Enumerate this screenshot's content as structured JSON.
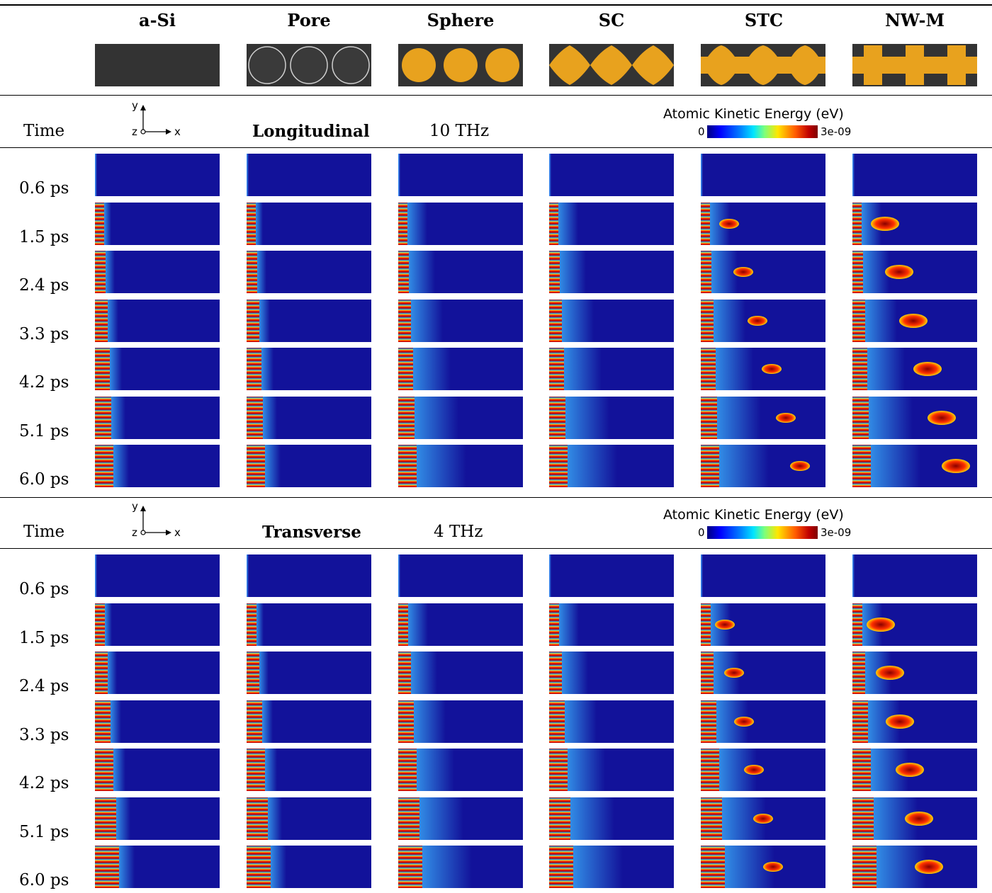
{
  "columns": [
    "a-Si",
    "Pore",
    "Sphere",
    "SC",
    "STC",
    "NW-M"
  ],
  "sections": [
    {
      "time_label": "Time",
      "axis": {
        "y": "y",
        "z": "z",
        "x": "x"
      },
      "mode": "Longitudinal",
      "frequency": "10 THz",
      "colorbar": {
        "title": "Atomic Kinetic Energy (eV)",
        "min": "0",
        "max": "3e-09"
      },
      "times": [
        "0.6 ps",
        "1.5 ps",
        "2.4 ps",
        "3.3 ps",
        "4.2 ps",
        "5.1 ps",
        "6.0 ps"
      ]
    },
    {
      "time_label": "Time",
      "axis": {
        "y": "y",
        "z": "z",
        "x": "x"
      },
      "mode": "Transverse",
      "frequency": "4 THz",
      "colorbar": {
        "title": "Atomic Kinetic Energy (eV)",
        "min": "0",
        "max": "3e-09"
      },
      "times": [
        "0.6 ps",
        "1.5 ps",
        "2.4 ps",
        "3.3 ps",
        "4.2 ps",
        "5.1 ps",
        "6.0 ps"
      ]
    }
  ],
  "colors": {
    "background_dark": "#333333",
    "crystal": "#e8a21e",
    "panel_base": "#12129a"
  }
}
